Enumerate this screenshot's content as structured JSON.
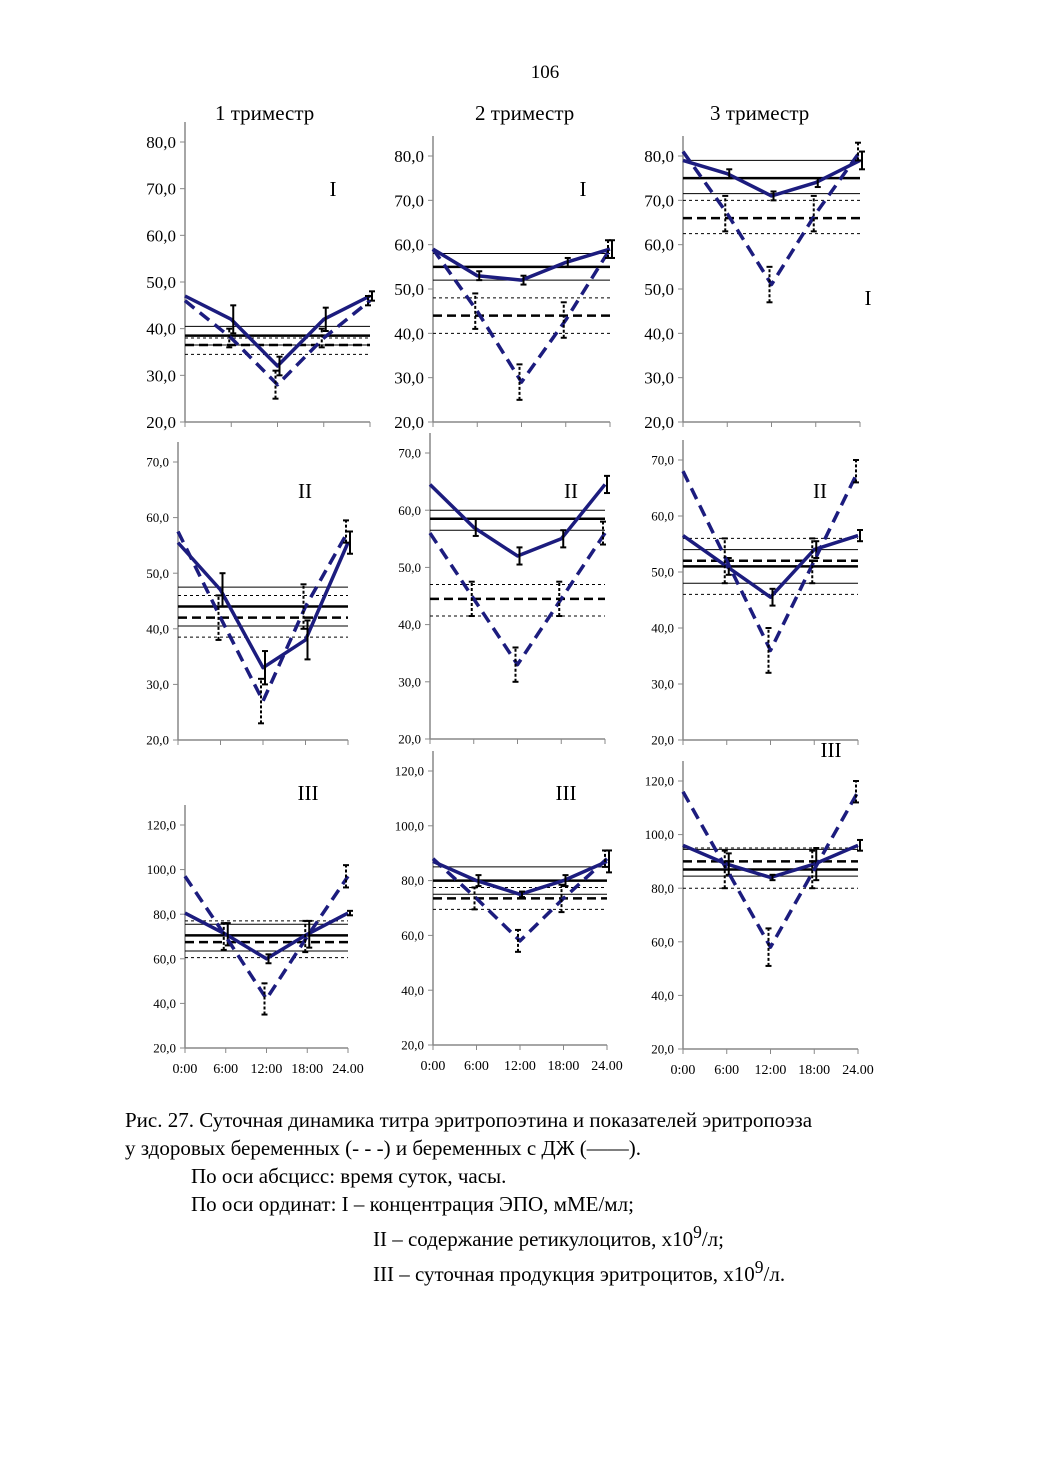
{
  "page_number": "106",
  "column_headers": [
    "1 триместр",
    "2 триместр",
    "3 триместр"
  ],
  "colors": {
    "series": "#1c1c7e",
    "axis": "#888888",
    "reference": "#000000"
  },
  "x_tick_labels": [
    "0:00",
    "6:00",
    "12:00",
    "18:00",
    "24.00"
  ],
  "chart_data": [
    {
      "type": "line",
      "panel": "I",
      "trimester": "1 триместр",
      "ylim": [
        20,
        80
      ],
      "y_ticks": [
        "20,0",
        "30,0",
        "40,0",
        "50,0",
        "60,0",
        "70,0",
        "80,0"
      ],
      "x": [
        "0:00",
        "6:00",
        "12:00",
        "18:00",
        "24.00"
      ],
      "series": [
        {
          "style": "solid",
          "values": [
            47,
            42,
            32,
            42,
            47
          ],
          "err": [
            0,
            3,
            2,
            2.5,
            1
          ]
        },
        {
          "style": "dashed",
          "values": [
            46,
            38,
            28,
            38,
            46
          ],
          "err": [
            0,
            2,
            3,
            2,
            1
          ]
        }
      ],
      "solid_ref": {
        "mean": 38.5,
        "band": [
          36.5,
          40.5
        ]
      },
      "dashed_ref": {
        "mean": 36.5,
        "band": [
          34.5,
          38
        ]
      }
    },
    {
      "type": "line",
      "panel": "I",
      "trimester": "2 триместр",
      "ylim": [
        20,
        80
      ],
      "y_ticks": [
        "20,0",
        "30,0",
        "40,0",
        "50,0",
        "60,0",
        "70,0",
        "80,0"
      ],
      "x": [
        "0:00",
        "6:00",
        "12:00",
        "18:00",
        "24.00"
      ],
      "series": [
        {
          "style": "solid",
          "values": [
            59,
            53,
            52,
            56,
            59
          ],
          "err": [
            0,
            1,
            1,
            1,
            2
          ]
        },
        {
          "style": "dashed",
          "values": [
            59,
            45,
            29,
            43,
            59
          ],
          "err": [
            0,
            4,
            4,
            4,
            2
          ]
        }
      ],
      "solid_ref": {
        "mean": 55,
        "band": [
          52,
          58
        ]
      },
      "dashed_ref": {
        "mean": 44,
        "band": [
          40,
          48
        ]
      }
    },
    {
      "type": "line",
      "panel": "I",
      "trimester": "3 триместр",
      "ylim": [
        20,
        80
      ],
      "y_ticks": [
        "20,0",
        "30,0",
        "40,0",
        "50,0",
        "60,0",
        "70,0",
        "80,0"
      ],
      "x": [
        "0:00",
        "6:00",
        "12:00",
        "18:00",
        "24.00"
      ],
      "series": [
        {
          "style": "solid",
          "values": [
            79,
            76,
            71,
            74,
            79
          ],
          "err": [
            0,
            1,
            1,
            1,
            2
          ]
        },
        {
          "style": "dashed",
          "values": [
            81,
            67,
            51,
            67,
            81
          ],
          "err": [
            0,
            4,
            4,
            4,
            2
          ]
        }
      ],
      "solid_ref": {
        "mean": 75,
        "band": [
          71.5,
          79
        ]
      },
      "dashed_ref": {
        "mean": 66,
        "band": [
          62.5,
          70
        ]
      }
    },
    {
      "type": "line",
      "panel": "II",
      "trimester": "1 триместр",
      "ylim": [
        20,
        70
      ],
      "y_ticks": [
        "20,0",
        "30,0",
        "40,0",
        "50,0",
        "60,0",
        "70,0"
      ],
      "x": [
        "0:00",
        "6:00",
        "12:00",
        "18:00",
        "24.00"
      ],
      "series": [
        {
          "style": "solid",
          "values": [
            55.5,
            47,
            33,
            38,
            55.5
          ],
          "err": [
            0,
            3,
            3,
            3.5,
            2
          ]
        },
        {
          "style": "dashed",
          "values": [
            57.5,
            42,
            27,
            44,
            57.5
          ],
          "err": [
            0,
            4,
            4,
            4,
            2
          ]
        }
      ],
      "solid_ref": {
        "mean": 44,
        "band": [
          40.5,
          47.5
        ]
      },
      "dashed_ref": {
        "mean": 42,
        "band": [
          38.5,
          46
        ]
      }
    },
    {
      "type": "line",
      "panel": "II",
      "trimester": "2 триместр",
      "ylim": [
        20,
        70
      ],
      "y_ticks": [
        "20,0",
        "30,0",
        "40,0",
        "50,0",
        "60,0",
        "70,0"
      ],
      "x": [
        "0:00",
        "6:00",
        "12:00",
        "18:00",
        "24.00"
      ],
      "series": [
        {
          "style": "solid",
          "values": [
            64.5,
            57,
            52,
            55,
            64.5
          ],
          "err": [
            0,
            1.5,
            1.5,
            1.5,
            1.5
          ]
        },
        {
          "style": "dashed",
          "values": [
            56,
            44.5,
            33,
            44.5,
            56
          ],
          "err": [
            0,
            3,
            3,
            3,
            2
          ]
        }
      ],
      "solid_ref": {
        "mean": 58.5,
        "band": [
          56.5,
          60
        ]
      },
      "dashed_ref": {
        "mean": 44.5,
        "band": [
          41.5,
          47
        ]
      }
    },
    {
      "type": "line",
      "panel": "II",
      "trimester": "3 триместр",
      "ylim": [
        20,
        70
      ],
      "y_ticks": [
        "20,0",
        "30,0",
        "40,0",
        "50,0",
        "60,0",
        "70,0"
      ],
      "x": [
        "0:00",
        "6:00",
        "12:00",
        "18:00",
        "24.00"
      ],
      "series": [
        {
          "style": "solid",
          "values": [
            56.5,
            51,
            45.5,
            54,
            56.5
          ],
          "err": [
            0,
            1.5,
            1.5,
            1.5,
            1
          ]
        },
        {
          "style": "dashed",
          "values": [
            68,
            52,
            36,
            52,
            68
          ],
          "err": [
            0,
            4,
            4,
            4,
            2
          ]
        }
      ],
      "solid_ref": {
        "mean": 51,
        "band": [
          48,
          54
        ]
      },
      "dashed_ref": {
        "mean": 52,
        "band": [
          46,
          56
        ]
      }
    },
    {
      "type": "line",
      "panel": "III",
      "trimester": "1 триместр",
      "ylim": [
        20,
        120
      ],
      "y_ticks": [
        "20,0",
        "40,0",
        "60,0",
        "80,0",
        "100,0",
        "120,0"
      ],
      "x": [
        "0:00",
        "6:00",
        "12:00",
        "18:00",
        "24.00"
      ],
      "series": [
        {
          "style": "solid",
          "values": [
            80.5,
            71,
            60,
            71,
            80.5
          ],
          "err": [
            0,
            5,
            2,
            6,
            1
          ]
        },
        {
          "style": "dashed",
          "values": [
            97,
            70,
            42,
            70,
            97
          ],
          "err": [
            0,
            6,
            7,
            7,
            5
          ]
        }
      ],
      "solid_ref": {
        "mean": 70.5,
        "band": [
          63.5,
          75.5
        ]
      },
      "dashed_ref": {
        "mean": 67.5,
        "band": [
          60.5,
          77
        ]
      }
    },
    {
      "type": "line",
      "panel": "III",
      "trimester": "2 триместр",
      "ylim": [
        20,
        120
      ],
      "y_ticks": [
        "20,0",
        "40,0",
        "60,0",
        "80,0",
        "100,0",
        "120,0"
      ],
      "x": [
        "0:00",
        "6:00",
        "12:00",
        "18:00",
        "24.00"
      ],
      "series": [
        {
          "style": "solid",
          "values": [
            87,
            80,
            75,
            80,
            87
          ],
          "err": [
            0,
            2,
            1,
            2,
            4
          ]
        },
        {
          "style": "dashed",
          "values": [
            88,
            73.5,
            58,
            73.5,
            88
          ],
          "err": [
            0,
            4,
            4,
            5,
            3
          ]
        }
      ],
      "solid_ref": {
        "mean": 80,
        "band": [
          75,
          85
        ]
      },
      "dashed_ref": {
        "mean": 73.5,
        "band": [
          69.5,
          77.5
        ]
      }
    },
    {
      "type": "line",
      "panel": "III",
      "trimester": "3 триместр",
      "ylim": [
        20,
        120
      ],
      "y_ticks": [
        "20,0",
        "40,0",
        "60,0",
        "80,0",
        "100,0",
        "120,0"
      ],
      "x": [
        "0:00",
        "6:00",
        "12:00",
        "18:00",
        "24.00"
      ],
      "series": [
        {
          "style": "solid",
          "values": [
            96,
            89,
            84,
            89,
            96
          ],
          "err": [
            0,
            4,
            1,
            6,
            2
          ]
        },
        {
          "style": "dashed",
          "values": [
            116,
            87,
            58,
            87,
            116
          ],
          "err": [
            0,
            7,
            7,
            7,
            4
          ]
        }
      ],
      "solid_ref": {
        "mean": 87,
        "band": [
          84.5,
          94.5
        ]
      },
      "dashed_ref": {
        "mean": 90,
        "band": [
          80,
          95
        ]
      }
    }
  ],
  "caption": {
    "line1": "Рис. 27. Суточная динамика титра эритропоэтина и показателей эритропоэза",
    "line2": "у здоровых беременных (- - -) и беременных с ДЖ (——).",
    "line3": "По оси абсцисс: время суток, часы.",
    "line4": "По оси ординат:  I – концентрация ЭПО, мМЕ/мл;",
    "line5_pre": "II – содержание ретикулоцитов, х10",
    "line5_sup": "9",
    "line5_post": "/л;",
    "line6_pre": "III – суточная продукция эритроцитов, х10",
    "line6_sup": "9",
    "line6_post": "/л."
  }
}
